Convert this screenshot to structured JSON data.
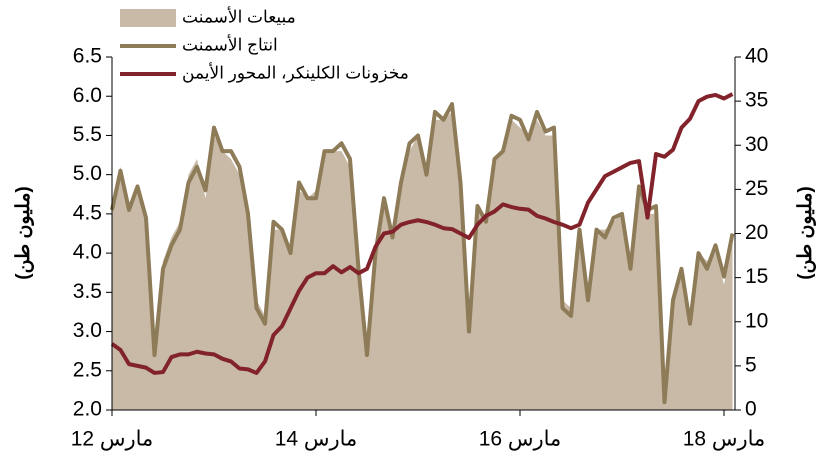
{
  "chart_data": {
    "type": "line",
    "ylabel": "(مليون طن)",
    "y2label": "(مليون طن)",
    "categories": [
      "مارس 12",
      null,
      null,
      null,
      null,
      null,
      null,
      null,
      null,
      null,
      null,
      null,
      null,
      null,
      null,
      null,
      null,
      null,
      null,
      null,
      null,
      null,
      null,
      null,
      "مارس 14",
      null,
      null,
      null,
      null,
      null,
      null,
      null,
      null,
      null,
      null,
      null,
      null,
      null,
      null,
      null,
      null,
      null,
      null,
      null,
      null,
      null,
      null,
      null,
      "مارس 16",
      null,
      null,
      null,
      null,
      null,
      null,
      null,
      null,
      null,
      null,
      null,
      null,
      null,
      null,
      null,
      null,
      null,
      null,
      null,
      null,
      null,
      null,
      null,
      "مارس 18",
      null
    ],
    "series": [
      {
        "name": "مبيعات الأسمنت",
        "kind": "area",
        "color": "#c9baa7",
        "values": [
          4.6,
          5.1,
          4.6,
          4.8,
          4.5,
          2.9,
          3.9,
          4.2,
          4.4,
          5.0,
          5.2,
          4.7,
          5.5,
          5.3,
          5.2,
          5.0,
          4.4,
          3.4,
          3.2,
          4.3,
          4.3,
          4.0,
          4.8,
          4.7,
          4.8,
          5.3,
          5.3,
          5.3,
          5.1,
          3.9,
          2.9,
          4.1,
          4.6,
          4.3,
          4.9,
          5.3,
          5.5,
          5.1,
          5.7,
          5.7,
          5.8,
          4.9,
          3.2,
          4.5,
          4.5,
          5.2,
          5.3,
          5.7,
          5.6,
          5.5,
          5.7,
          5.5,
          5.5,
          3.4,
          3.3,
          4.2,
          3.5,
          4.3,
          4.3,
          4.4,
          4.5,
          3.9,
          4.8,
          4.5,
          4.5,
          2.2,
          3.5,
          3.8,
          3.2,
          4.0,
          3.9,
          4.0,
          3.6,
          4.2
        ]
      },
      {
        "name": "انتاج الأسمنت",
        "kind": "line",
        "color": "#8e7b58",
        "values": [
          4.55,
          5.05,
          4.55,
          4.85,
          4.45,
          2.7,
          3.8,
          4.1,
          4.3,
          4.9,
          5.1,
          4.8,
          5.6,
          5.3,
          5.3,
          5.1,
          4.5,
          3.3,
          3.1,
          4.4,
          4.3,
          4.0,
          4.9,
          4.7,
          4.7,
          5.3,
          5.3,
          5.4,
          5.2,
          3.8,
          2.7,
          4.0,
          4.7,
          4.2,
          4.9,
          5.4,
          5.5,
          5.0,
          5.8,
          5.7,
          5.9,
          4.9,
          3.0,
          4.6,
          4.4,
          5.2,
          5.3,
          5.75,
          5.7,
          5.45,
          5.8,
          5.55,
          5.6,
          3.3,
          3.2,
          4.3,
          3.4,
          4.3,
          4.2,
          4.45,
          4.5,
          3.8,
          4.85,
          4.55,
          4.6,
          2.1,
          3.4,
          3.8,
          3.1,
          4.0,
          3.8,
          4.1,
          3.7,
          4.25
        ]
      },
      {
        "name": "مخزونات الكلينكر، المحور الأيمن",
        "kind": "line",
        "axis": "y2",
        "color": "#82222a",
        "values": [
          7.5,
          6.8,
          5.2,
          5.0,
          4.8,
          4.2,
          4.3,
          6.0,
          6.3,
          6.3,
          6.6,
          6.4,
          6.3,
          5.8,
          5.5,
          4.7,
          4.6,
          4.2,
          5.5,
          8.5,
          9.5,
          11.5,
          13.5,
          15,
          15.5,
          15.5,
          16.3,
          15.6,
          16.2,
          15.5,
          16,
          18.5,
          20,
          20.2,
          21,
          21.3,
          21.5,
          21.3,
          21,
          20.6,
          20.5,
          20,
          19.5,
          21,
          22,
          22.5,
          23.3,
          23,
          22.8,
          22.7,
          22,
          21.7,
          21.3,
          21,
          20.6,
          21,
          23.5,
          25,
          26.5,
          27,
          27.5,
          28,
          28.2,
          21.8,
          29,
          28.7,
          29.5,
          32,
          33,
          35,
          35.5,
          35.7,
          35.3,
          35.8
        ]
      }
    ],
    "ylim": [
      2.0,
      6.5
    ],
    "yticks": [
      {
        "value": 2.0,
        "label": "2.0"
      },
      2.5,
      {
        "value": 3.0,
        "label": "3.0"
      },
      3.5,
      {
        "value": 4.0,
        "label": "4.0"
      },
      4.5,
      {
        "value": 5.0,
        "label": "5.0"
      },
      5.5,
      {
        "value": 6.0,
        "label": "6.0"
      },
      6.5
    ],
    "y2lim": [
      0,
      40
    ],
    "y2ticks": [
      0,
      5,
      10,
      15,
      20,
      25,
      30,
      35,
      40
    ],
    "grid": false
  }
}
